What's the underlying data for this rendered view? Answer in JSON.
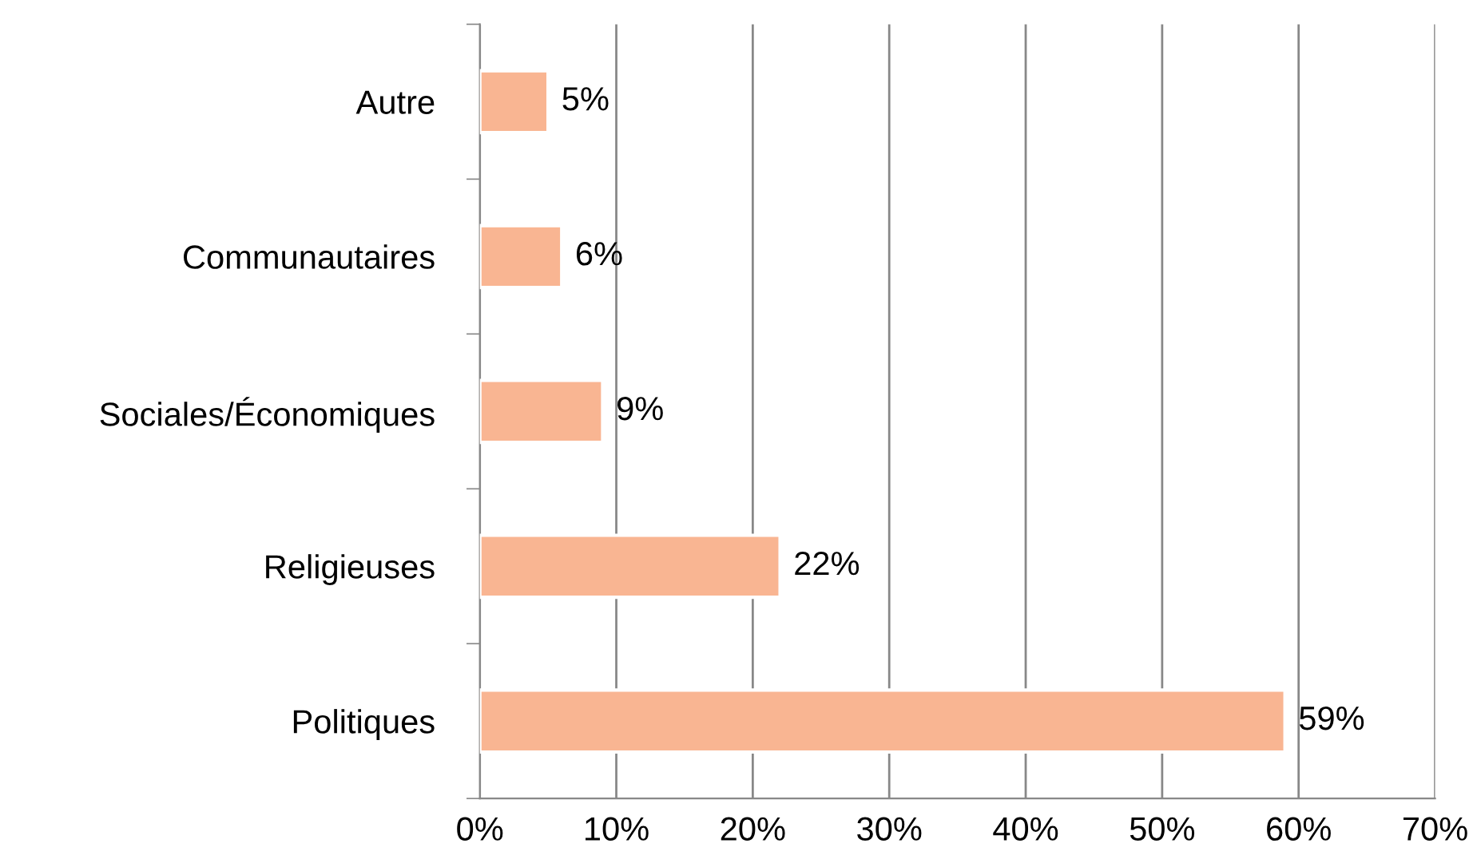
{
  "chart_data": {
    "type": "bar",
    "orientation": "horizontal",
    "categories": [
      "Autre",
      "Communautaires",
      "Sociales/Économiques",
      "Religieuses",
      "Politiques"
    ],
    "values": [
      5,
      6,
      9,
      22,
      59
    ],
    "value_labels": [
      "5%",
      "6%",
      "9%",
      "22%",
      "59%"
    ],
    "color": "#f9b592",
    "xlim": [
      0,
      70
    ],
    "xticks": [
      {
        "value": 0,
        "label": "0%"
      },
      {
        "value": 10,
        "label": "10%"
      },
      {
        "value": 20,
        "label": "20%"
      },
      {
        "value": 30,
        "label": "30%"
      },
      {
        "value": 40,
        "label": "40%"
      },
      {
        "value": 50,
        "label": "50%"
      },
      {
        "value": 60,
        "label": "60%"
      },
      {
        "value": 70,
        "label": "70%"
      }
    ],
    "grid": "x"
  }
}
